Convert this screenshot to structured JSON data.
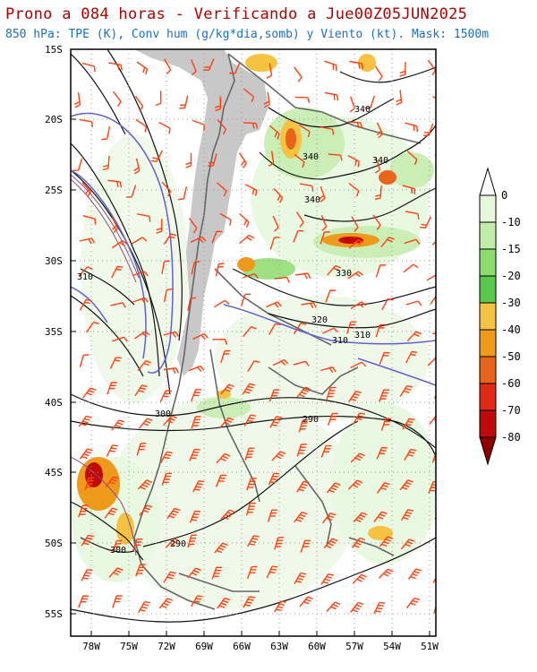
{
  "header": {
    "title": "Prono a 084 horas - Verificando a Jue00Z05JUN2025",
    "subtitle": "850 hPa: TPE (K), Conv hum (g/kg*dia,somb) y Viento (kt). Mask: 1500m"
  },
  "axes": {
    "lat_labels": [
      "15S",
      "20S",
      "25S",
      "30S",
      "35S",
      "40S",
      "45S",
      "50S",
      "55S"
    ],
    "lon_labels": [
      "78W",
      "75W",
      "72W",
      "69W",
      "66W",
      "63W",
      "60W",
      "57W",
      "54W",
      "51W"
    ]
  },
  "colorbar": {
    "labels": [
      "0",
      "-10",
      "-15",
      "-20",
      "-30",
      "-40",
      "-50",
      "-60",
      "-70",
      "-80"
    ],
    "colors": [
      "#ffffff",
      "#e6f7dc",
      "#c2ecaa",
      "#8ddc6e",
      "#5ac84a",
      "#f5c242",
      "#f09a1c",
      "#e8641a",
      "#e02a14",
      "#c00a0a",
      "#8c0000"
    ]
  },
  "contour_labels": [
    "340",
    "340",
    "340",
    "340",
    "330",
    "320",
    "310",
    "310",
    "310",
    "300",
    "290",
    "300",
    "290"
  ],
  "colors": {
    "title": "#b00000",
    "subtitle": "#1a6fc4",
    "mask": "#c8c8c8",
    "contour": "#111111",
    "contour_310": "#6060d0",
    "wind_barb": "#ff4010",
    "coast": "#666666"
  }
}
